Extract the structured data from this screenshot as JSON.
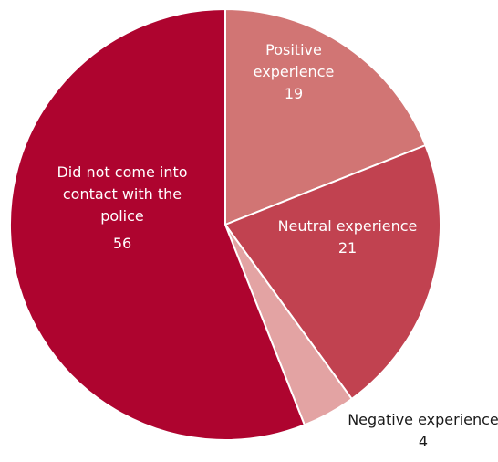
{
  "chart_data": {
    "type": "pie",
    "title": "",
    "slices": [
      {
        "label_lines": [
          "Positive",
          "experience"
        ],
        "value": 19,
        "value_label": "19",
        "color": "#d17574",
        "label_color": "#ffffff"
      },
      {
        "label_lines": [
          "Neutral experience"
        ],
        "value": 21,
        "value_label": "21",
        "color": "#c14250",
        "label_color": "#ffffff"
      },
      {
        "label_lines": [
          "Negative experience"
        ],
        "value": 4,
        "value_label": "4",
        "color": "#e3a3a3",
        "label_color": "#1a1a1a"
      },
      {
        "label_lines": [
          "Did not come into",
          "contact with the",
          "police"
        ],
        "value": 56,
        "value_label": "56",
        "color": "#ae042f",
        "label_color": "#ffffff"
      }
    ],
    "start": "12 o'clock",
    "direction": "clockwise",
    "legend": "none"
  }
}
